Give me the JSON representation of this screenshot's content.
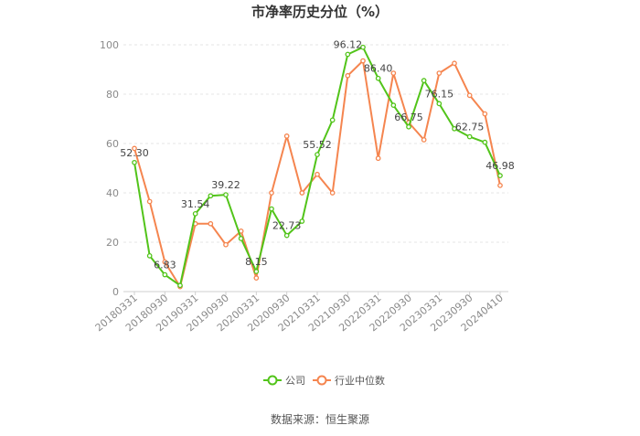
{
  "chart_data": {
    "type": "line",
    "title": "市净率历史分位（%）",
    "ylim": [
      0,
      100
    ],
    "yticks": [
      0,
      20,
      40,
      60,
      80,
      100
    ],
    "grid": true,
    "legend_position": "bottom-center",
    "x": [
      "20180331",
      "20180630",
      "20180930",
      "20181231",
      "20190331",
      "20190630",
      "20190930",
      "20191231",
      "20200331",
      "20200630",
      "20200930",
      "20201231",
      "20210331",
      "20210630",
      "20210930",
      "20211231",
      "20220331",
      "20220630",
      "20220930",
      "20221231",
      "20230331",
      "20230630",
      "20230930",
      "20231231",
      "20240410"
    ],
    "x_tick_labels": [
      "20180331",
      "20180930",
      "20190331",
      "20190930",
      "20200331",
      "20200930",
      "20210331",
      "20210930",
      "20220331",
      "20220930",
      "20230331",
      "20230930",
      "20240410"
    ],
    "series": [
      {
        "name": "公司",
        "color": "#52c41a",
        "values": [
          52.3,
          14.5,
          6.83,
          2.5,
          31.54,
          38.8,
          39.22,
          21.5,
          8.15,
          33.5,
          22.73,
          28.5,
          55.52,
          69.5,
          96.12,
          99.0,
          86.4,
          75.5,
          66.75,
          85.5,
          76.15,
          66.0,
          62.75,
          60.5,
          46.98
        ],
        "data_labels": {
          "0": "52.30",
          "2": "6.83",
          "4": "31.54",
          "6": "39.22",
          "8": "8.15",
          "10": "22.73",
          "12": "55.52",
          "14": "96.12",
          "16": "86.40",
          "18": "66.75",
          "20": "76.15",
          "22": "62.75",
          "24": "46.98"
        }
      },
      {
        "name": "行业中位数",
        "color": "#f5854f",
        "values": [
          58.0,
          36.5,
          12.0,
          2.0,
          27.5,
          27.5,
          19.0,
          24.5,
          5.5,
          40.0,
          63.0,
          40.0,
          47.5,
          40.0,
          87.5,
          93.5,
          54.0,
          88.5,
          68.5,
          61.5,
          88.5,
          92.5,
          79.5,
          72.0,
          43.0
        ]
      }
    ]
  },
  "source_text": "数据来源：恒生聚源"
}
